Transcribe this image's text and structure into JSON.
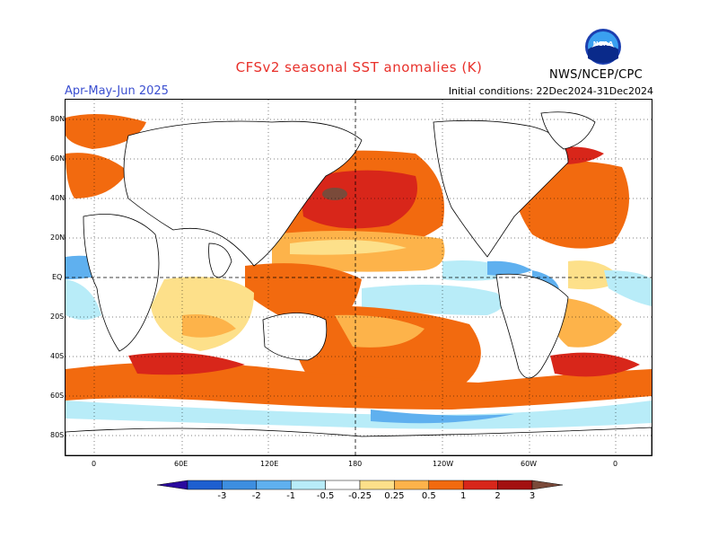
{
  "header": {
    "title": "CFSv2 seasonal SST anomalies (K)",
    "period": "Apr-May-Jun 2025",
    "initial_conditions": "Initial conditions: 22Dec2024-31Dec2024",
    "agency": "NWS/NCEP/CPC",
    "logo_text": "NOAA"
  },
  "map": {
    "lat_labels": [
      "80N",
      "60N",
      "40N",
      "20N",
      "EQ",
      "20S",
      "40S",
      "60S",
      "80S"
    ],
    "lon_labels": [
      "0",
      "60E",
      "120E",
      "180",
      "120W",
      "60W",
      "0"
    ]
  },
  "colorbar": {
    "labels": [
      "-3",
      "-2",
      "-1",
      "-0.5",
      "-0.25",
      "0.25",
      "0.5",
      "1",
      "2",
      "3"
    ],
    "colors": [
      "#2a0a9e",
      "#1e5fd0",
      "#3d8ee0",
      "#5fb0ef",
      "#b8ecf8",
      "#ffffff",
      "#fde08a",
      "#fdb34a",
      "#f26a0f",
      "#d8261a",
      "#a31010",
      "#7a4a3a"
    ]
  }
}
